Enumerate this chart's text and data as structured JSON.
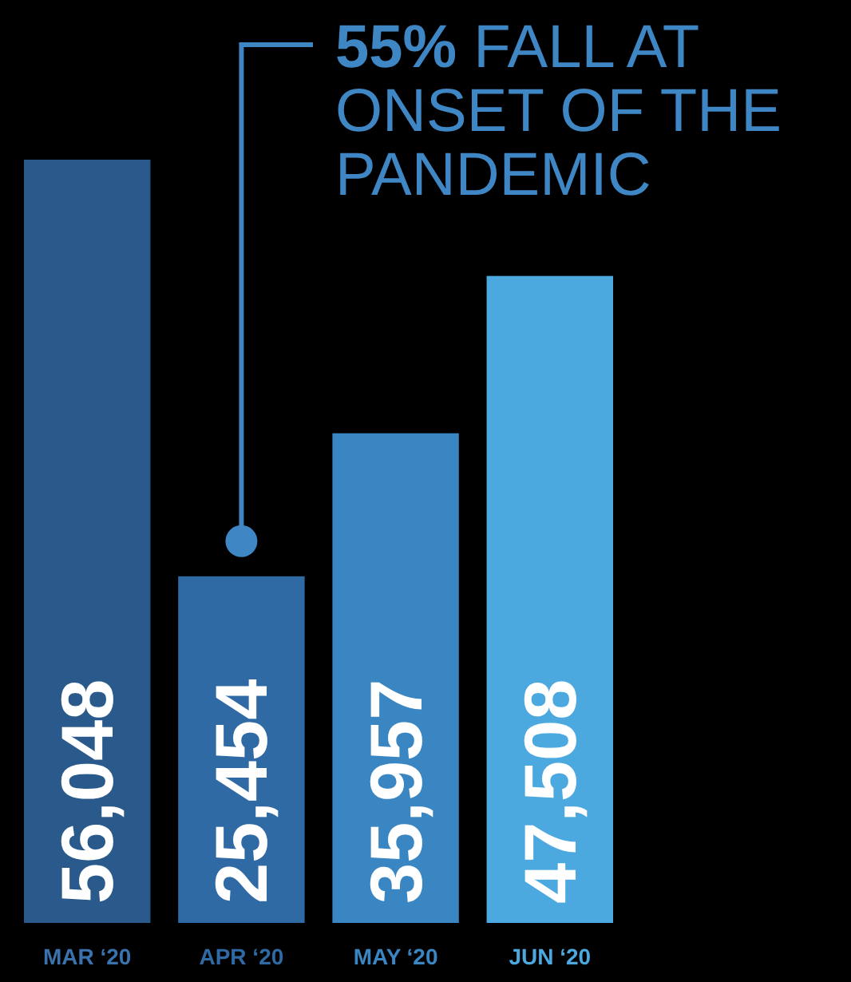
{
  "chart_data": {
    "type": "bar",
    "categories": [
      "MAR ‘20",
      "APR ‘20",
      "MAY ‘20",
      "JUN ‘20"
    ],
    "values": [
      56048,
      25454,
      35957,
      47508
    ],
    "colors": [
      "#2a5a8c",
      "#2f6aa4",
      "#3a86c2",
      "#4ba9e0"
    ],
    "value_labels": [
      "56,048",
      "25,454",
      "35,957",
      "47,508"
    ],
    "annotations": [
      "55% FALL AT ONSET OF THE PANDEMIC"
    ]
  }
}
